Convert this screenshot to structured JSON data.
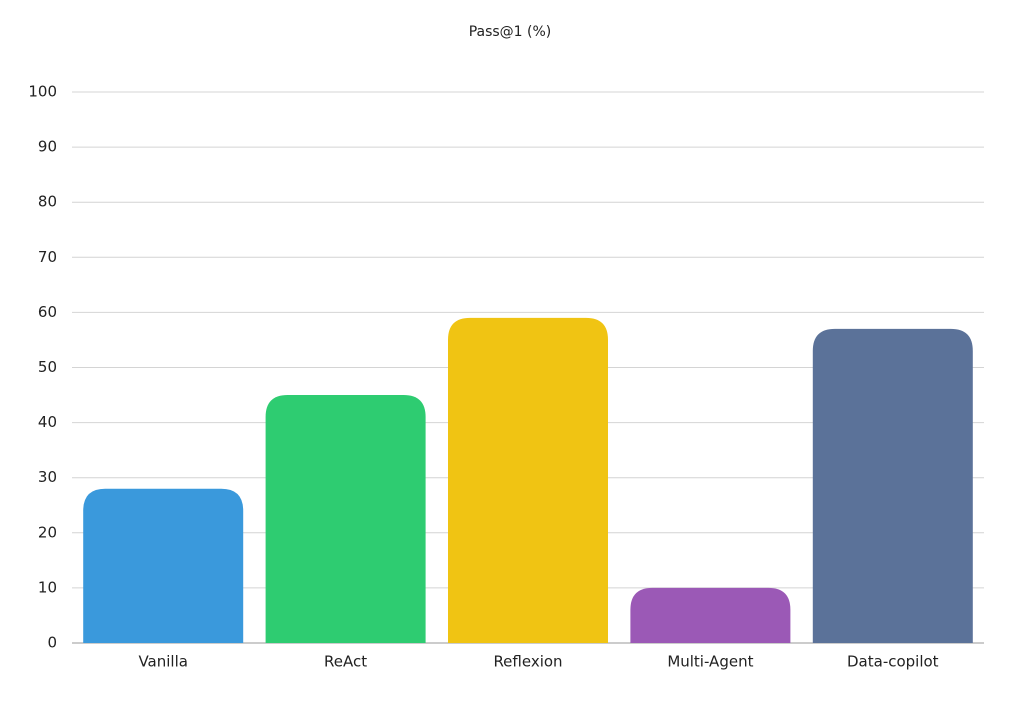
{
  "chart_data": {
    "type": "bar",
    "title": "Pass@1 (%)",
    "categories": [
      "Vanilla",
      "ReAct",
      "Reflexion",
      "Multi-Agent",
      "Data-copilot"
    ],
    "values": [
      28,
      45,
      59,
      10,
      57
    ],
    "colors": [
      "#3a99dc",
      "#2ecc71",
      "#f0c413",
      "#9b59b6",
      "#5b7299"
    ],
    "ylim": [
      0,
      100
    ],
    "yticks": [
      0,
      10,
      20,
      30,
      40,
      50,
      60,
      70,
      80,
      90,
      100
    ],
    "grid": true
  }
}
